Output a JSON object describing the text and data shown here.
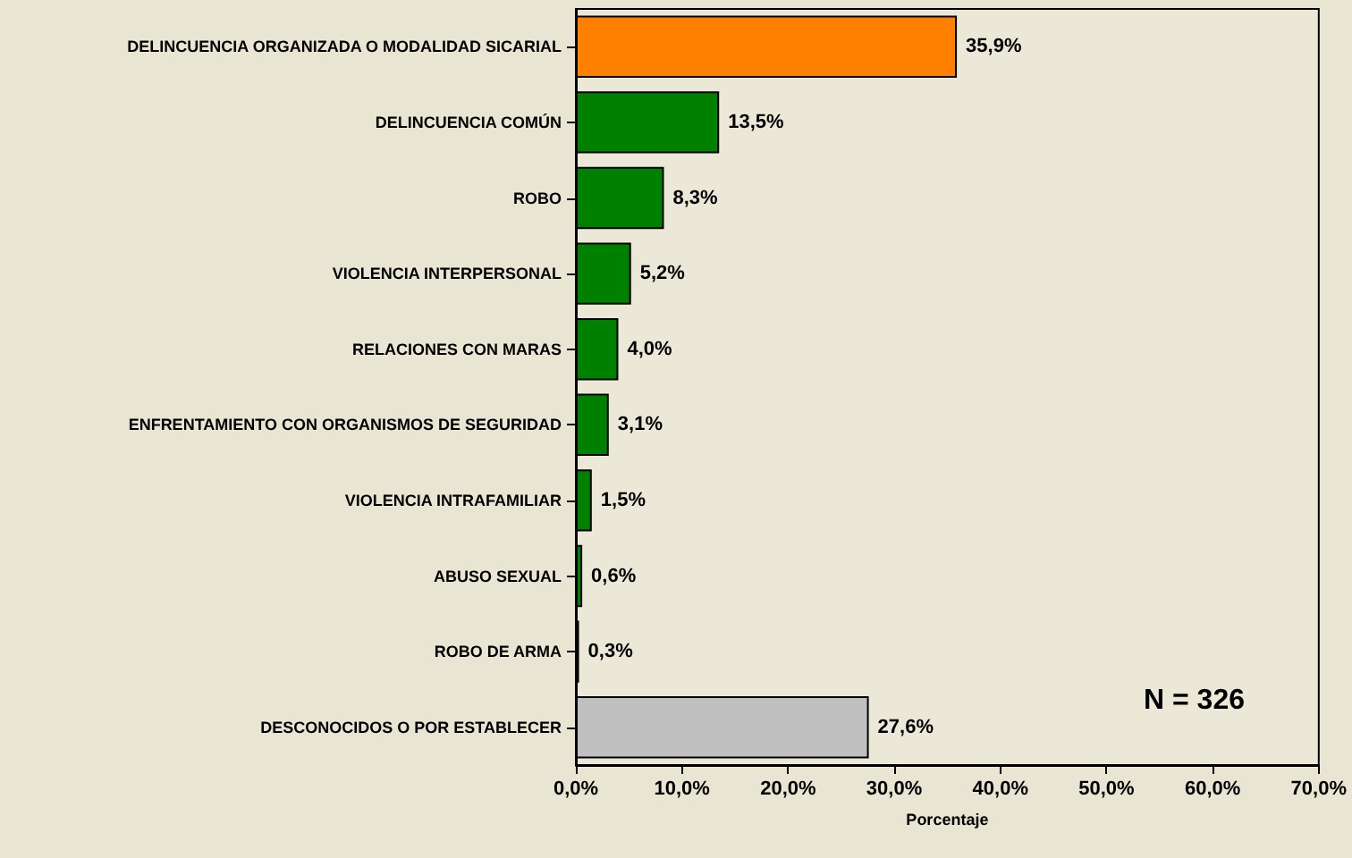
{
  "chart_data": {
    "type": "bar",
    "orientation": "horizontal",
    "categories": [
      "DELINCUENCIA ORGANIZADA O MODALIDAD SICARIAL",
      "DELINCUENCIA COMÚN",
      "ROBO",
      "VIOLENCIA INTERPERSONAL",
      "RELACIONES CON MARAS",
      "ENFRENTAMIENTO CON ORGANISMOS DE SEGURIDAD",
      "VIOLENCIA INTRAFAMILIAR",
      "ABUSO SEXUAL",
      "ROBO DE ARMA",
      "DESCONOCIDOS O POR ESTABLECER"
    ],
    "values": [
      35.9,
      13.5,
      8.3,
      5.2,
      4.0,
      3.1,
      1.5,
      0.6,
      0.3,
      27.6
    ],
    "colors": [
      "#ff8000",
      "#008000",
      "#008000",
      "#008000",
      "#008000",
      "#008000",
      "#008000",
      "#008000",
      "#008000",
      "#c0c0c0"
    ],
    "value_labels": [
      "35,9%",
      "13,5%",
      "8,3%",
      "5,2%",
      "4,0%",
      "3,1%",
      "1,5%",
      "0,6%",
      "0,3%",
      "27,6%"
    ],
    "xlabel": "Porcentaje",
    "xlim": [
      0,
      70
    ],
    "xticks": [
      {
        "value": 0,
        "label": "0,0%"
      },
      {
        "value": 10,
        "label": "10,0%"
      },
      {
        "value": 20,
        "label": "20,0%"
      },
      {
        "value": 30,
        "label": "30,0%"
      },
      {
        "value": 40,
        "label": "40,0%"
      },
      {
        "value": 50,
        "label": "50,0%"
      },
      {
        "value": 60,
        "label": "60,0%"
      },
      {
        "value": 70,
        "label": "70,0%"
      }
    ],
    "annotations": [
      "N = 326"
    ],
    "grid": false
  }
}
